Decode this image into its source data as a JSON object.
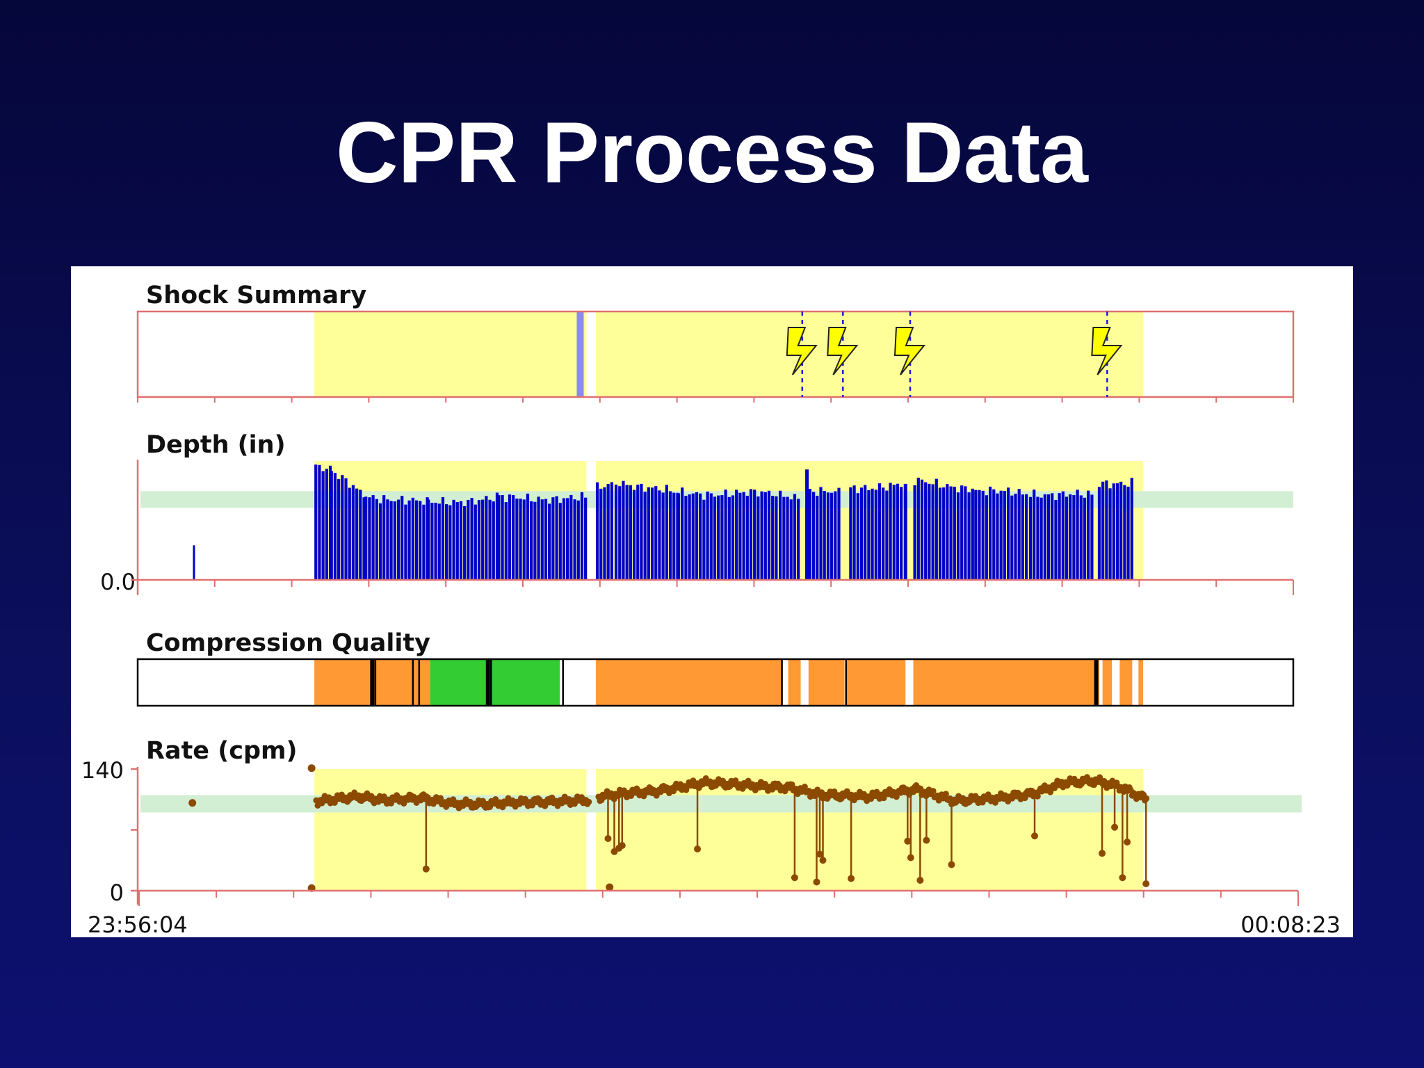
{
  "slide": {
    "title": "CPR Process Data"
  },
  "chart_data": {
    "type": "timeline",
    "x_axis": {
      "start_label": "23:56:04",
      "end_label": "00:08:23",
      "start_seconds": 0,
      "end_seconds": 739
    },
    "cpr_periods_seconds": [
      [
        113,
        287
      ],
      [
        293,
        643
      ]
    ],
    "colors": {
      "cpr_period": "#ffff99",
      "target_band": "#d3efd3",
      "axis": "#e07070",
      "depth_bar": "#0000cc",
      "rate_point": "#8b4a00",
      "shock": "#ffff00",
      "marker_line": "#1a1adf",
      "quality_good": "#33cc33",
      "quality_fair": "#ff9933"
    },
    "panels": [
      {
        "id": "shock",
        "title": "Shock Summary",
        "shocks_seconds": [
          425,
          451,
          494,
          620
        ],
        "pause_marker_seconds": 283
      },
      {
        "id": "depth",
        "title": "Depth (in)",
        "y_tick_labels": [
          "0.0"
        ],
        "ylim": [
          0,
          2.6
        ],
        "target_band": [
          1.5,
          1.85
        ],
        "isolated_bars": [
          {
            "t": 36,
            "v": 0.72
          }
        ],
        "segments": [
          {
            "t0": 113,
            "t1": 123,
            "v0": 2.4,
            "v1": 2.25
          },
          {
            "t0": 123,
            "t1": 145,
            "v0": 2.25,
            "v1": 1.75
          },
          {
            "t0": 145,
            "t1": 185,
            "v0": 1.75,
            "v1": 1.6
          },
          {
            "t0": 185,
            "t1": 230,
            "v0": 1.6,
            "v1": 1.7
          },
          {
            "t0": 230,
            "t1": 287,
            "v0": 1.7,
            "v1": 1.7
          },
          {
            "t0": 293,
            "t1": 305,
            "v0": 1.9,
            "v1": 2.05
          },
          {
            "t0": 305,
            "t1": 345,
            "v0": 2.05,
            "v1": 1.8
          },
          {
            "t0": 345,
            "t1": 410,
            "v0": 1.8,
            "v1": 1.8
          },
          {
            "t0": 410,
            "t1": 424,
            "v0": 1.8,
            "v1": 1.7
          },
          {
            "t0": 429,
            "t1": 448,
            "v0": 1.85,
            "v1": 1.8
          },
          {
            "t0": 455,
            "t1": 490,
            "v0": 1.9,
            "v1": 2.0
          },
          {
            "t0": 496,
            "t1": 535,
            "v0": 2.05,
            "v1": 1.9
          },
          {
            "t0": 535,
            "t1": 570,
            "v0": 1.85,
            "v1": 1.8
          },
          {
            "t0": 570,
            "t1": 612,
            "v0": 1.8,
            "v1": 1.75
          },
          {
            "t0": 614,
            "t1": 637,
            "v0": 2.0,
            "v1": 2.05
          }
        ],
        "spikes": [
          {
            "t": 428,
            "v": 2.3
          },
          {
            "t": 491,
            "v": 2.0
          }
        ]
      },
      {
        "id": "quality",
        "title": "Compression Quality",
        "blocks": [
          {
            "t0": 113,
            "t1": 187,
            "q": "fair"
          },
          {
            "t0": 187,
            "t1": 270,
            "q": "good"
          },
          {
            "t0": 293,
            "t1": 412,
            "q": "fair"
          },
          {
            "t0": 416,
            "t1": 424,
            "q": "fair"
          },
          {
            "t0": 429,
            "t1": 452,
            "q": "fair"
          },
          {
            "t0": 453,
            "t1": 491,
            "q": "fair"
          },
          {
            "t0": 496,
            "t1": 615,
            "q": "fair"
          },
          {
            "t0": 617,
            "t1": 623,
            "q": "fair"
          },
          {
            "t0": 628,
            "t1": 636,
            "q": "fair"
          },
          {
            "t0": 640,
            "t1": 643,
            "q": "fair"
          }
        ],
        "dividers_seconds": [
          150,
          152,
          176,
          180,
          224,
          226,
          272,
          412,
          453,
          613
        ]
      },
      {
        "id": "rate",
        "title": "Rate (cpm)",
        "y_tick_labels": [
          "140",
          "0"
        ],
        "ylim": [
          0,
          140
        ],
        "target_band": [
          90,
          110
        ],
        "isolated_points": [
          {
            "t": 34,
            "v": 101
          },
          {
            "t": 110,
            "v": 141
          },
          {
            "t": 110,
            "v": 3
          },
          {
            "t": 300,
            "v": 4
          }
        ],
        "trend": [
          {
            "t": 113,
            "v": 103
          },
          {
            "t": 140,
            "v": 108
          },
          {
            "t": 155,
            "v": 104
          },
          {
            "t": 180,
            "v": 107
          },
          {
            "t": 200,
            "v": 100
          },
          {
            "t": 220,
            "v": 99
          },
          {
            "t": 240,
            "v": 102
          },
          {
            "t": 270,
            "v": 103
          },
          {
            "t": 287,
            "v": 104
          },
          {
            "t": 295,
            "v": 108
          },
          {
            "t": 310,
            "v": 112
          },
          {
            "t": 330,
            "v": 115
          },
          {
            "t": 360,
            "v": 124
          },
          {
            "t": 390,
            "v": 121
          },
          {
            "t": 415,
            "v": 119
          },
          {
            "t": 435,
            "v": 110
          },
          {
            "t": 465,
            "v": 108
          },
          {
            "t": 495,
            "v": 117
          },
          {
            "t": 520,
            "v": 103
          },
          {
            "t": 545,
            "v": 106
          },
          {
            "t": 570,
            "v": 112
          },
          {
            "t": 590,
            "v": 124
          },
          {
            "t": 610,
            "v": 126
          },
          {
            "t": 625,
            "v": 120
          },
          {
            "t": 645,
            "v": 103
          }
        ],
        "drops": [
          {
            "t": 183,
            "v": 25
          },
          {
            "t": 299,
            "v": 60
          },
          {
            "t": 303,
            "v": 45
          },
          {
            "t": 306,
            "v": 49
          },
          {
            "t": 308,
            "v": 52
          },
          {
            "t": 356,
            "v": 48
          },
          {
            "t": 418,
            "v": 15
          },
          {
            "t": 432,
            "v": 10
          },
          {
            "t": 434,
            "v": 42
          },
          {
            "t": 436,
            "v": 35
          },
          {
            "t": 454,
            "v": 14
          },
          {
            "t": 490,
            "v": 57
          },
          {
            "t": 492,
            "v": 38
          },
          {
            "t": 498,
            "v": 12
          },
          {
            "t": 502,
            "v": 58
          },
          {
            "t": 518,
            "v": 30
          },
          {
            "t": 571,
            "v": 63
          },
          {
            "t": 614,
            "v": 43
          },
          {
            "t": 622,
            "v": 73
          },
          {
            "t": 627,
            "v": 15
          },
          {
            "t": 630,
            "v": 56
          },
          {
            "t": 642,
            "v": 8
          }
        ]
      }
    ]
  }
}
